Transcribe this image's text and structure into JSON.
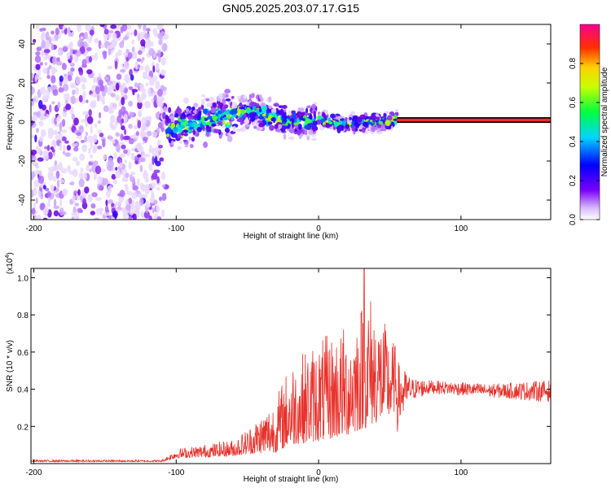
{
  "figure": {
    "title": "GN05.2025.203.07.17.G15"
  },
  "chart_data": [
    {
      "type": "heatmap",
      "title": "GN05.2025.203.07.17.G15",
      "xlabel": "Height of straight line (km)",
      "ylabel": "Frequency (Hz)",
      "xlim": [
        -202,
        163
      ],
      "ylim": [
        -50,
        50
      ],
      "xticks": [
        -200,
        -100,
        0,
        100
      ],
      "yticks": [
        -40,
        -20,
        0,
        20,
        40
      ],
      "colorbar": {
        "label": "Normalized spectral amplitude",
        "range": [
          0,
          1
        ],
        "ticks": [
          "0.0",
          "0.2",
          "0.4",
          "0.6",
          "0.8"
        ],
        "colormap": "rainbow (violet to red/magenta)"
      },
      "features": {
        "noise_region_x": [
          -200,
          -107
        ],
        "signal_band_x": [
          -107,
          55
        ],
        "signal_center_freq": [
          {
            "x": -110,
            "y": -6
          },
          {
            "x": -100,
            "y": -2
          },
          {
            "x": -80,
            "y": 1
          },
          {
            "x": -60,
            "y": 4
          },
          {
            "x": -45,
            "y": 6
          },
          {
            "x": -30,
            "y": 2
          },
          {
            "x": -15,
            "y": 0
          },
          {
            "x": 0,
            "y": 1
          },
          {
            "x": 15,
            "y": -1
          },
          {
            "x": 30,
            "y": -1
          },
          {
            "x": 45,
            "y": 0
          },
          {
            "x": 55,
            "y": 1
          }
        ],
        "steady_line_x": [
          55,
          163
        ],
        "steady_line_freq": 1
      }
    },
    {
      "type": "line",
      "xlabel": "Height of straight line (km)",
      "ylabel": "SNR (10 * v/v)",
      "yscale_label": "(x10",
      "yscale_exp": "4",
      "yscale_close": ")",
      "xlim": [
        -202,
        163
      ],
      "ylim": [
        0,
        1.05
      ],
      "xticks": [
        -200,
        -100,
        0,
        100
      ],
      "yticks": [
        0.2,
        0.4,
        0.6,
        0.8,
        1.0
      ],
      "ytick_labels": [
        "0.2",
        "0.4",
        "0.6",
        "0.8",
        "1.0"
      ],
      "color": "#e8302a",
      "envelope": [
        {
          "x": -200,
          "base": 0.01,
          "amp": 0.01
        },
        {
          "x": -110,
          "base": 0.01,
          "amp": 0.01
        },
        {
          "x": -100,
          "base": 0.03,
          "amp": 0.05
        },
        {
          "x": -60,
          "base": 0.04,
          "amp": 0.09
        },
        {
          "x": -50,
          "base": 0.05,
          "amp": 0.14
        },
        {
          "x": -30,
          "base": 0.06,
          "amp": 0.3
        },
        {
          "x": -20,
          "base": 0.1,
          "amp": 0.45
        },
        {
          "x": 0,
          "base": 0.12,
          "amp": 0.55
        },
        {
          "x": 20,
          "base": 0.15,
          "amp": 0.6
        },
        {
          "x": 35,
          "base": 0.2,
          "amp": 0.75
        },
        {
          "x": 50,
          "base": 0.25,
          "amp": 0.45
        },
        {
          "x": 65,
          "base": 0.38,
          "amp": 0.1
        },
        {
          "x": 80,
          "base": 0.4,
          "amp": 0.06
        },
        {
          "x": 120,
          "base": 0.38,
          "amp": 0.06
        },
        {
          "x": 163,
          "base": 0.37,
          "amp": 0.1
        }
      ],
      "peak": {
        "x": 32,
        "y": 1.05
      }
    }
  ],
  "colors": {
    "axis": "#000000",
    "snr_line": "#e8302a",
    "steady_line_outer": "#000000",
    "steady_line_inner": "#ff2a2a"
  }
}
